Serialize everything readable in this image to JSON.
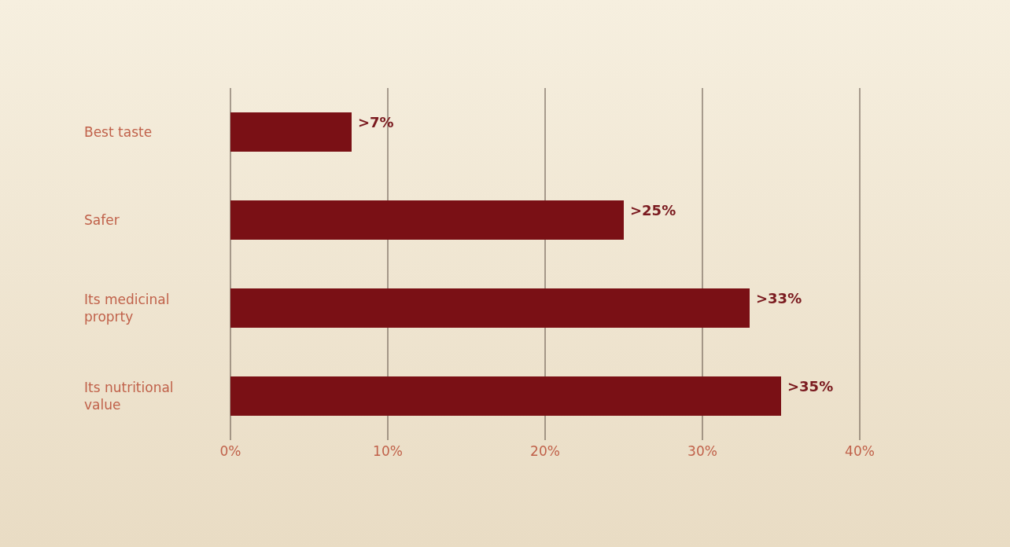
{
  "chart_data": {
    "type": "bar",
    "orientation": "horizontal",
    "categories": [
      "Best taste",
      "Safer",
      "Its medicinal proprty",
      "Its nutritional value"
    ],
    "values": [
      7.7,
      25,
      33,
      35
    ],
    "value_labels": [
      ">7%",
      ">25%",
      ">33%",
      ">35%"
    ],
    "color": "#7a1015",
    "xlim": [
      0,
      40
    ],
    "xticks": [
      {
        "value": 0,
        "label": "0%"
      },
      {
        "value": 10,
        "label": "10%"
      },
      {
        "value": 20,
        "label": "20%"
      },
      {
        "value": 30,
        "label": "30%"
      },
      {
        "value": 40,
        "label": "40%"
      }
    ],
    "grid": "x"
  }
}
